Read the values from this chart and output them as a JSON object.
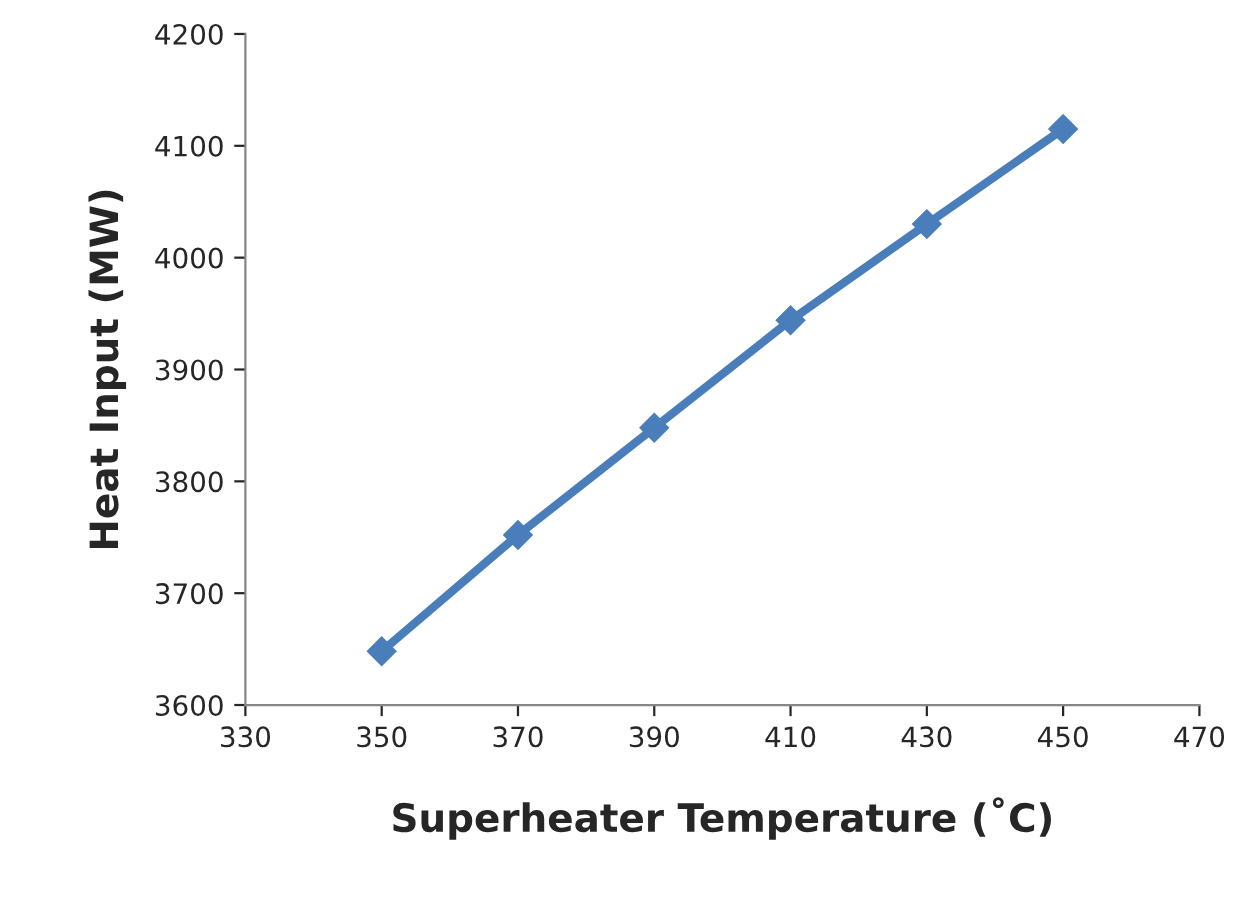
{
  "chart_data": {
    "type": "line",
    "xlabel": "Superheater Temperature (˚C)",
    "ylabel": "Heat Input (MW)",
    "x": [
      350,
      370,
      390,
      410,
      430,
      450
    ],
    "series": [
      {
        "color": "#4a7ebb",
        "values": [
          3648,
          3752,
          3848,
          3944,
          4030,
          4115
        ]
      }
    ],
    "xlim": [
      330,
      470
    ],
    "xticks": [
      330,
      350,
      370,
      390,
      410,
      430,
      450,
      470
    ],
    "ylim": [
      3600,
      4200
    ],
    "yticks": [
      3600,
      3700,
      3800,
      3900,
      4000,
      4100,
      4200
    ],
    "grid": false,
    "marker": "diamond",
    "line_style": "solid"
  }
}
